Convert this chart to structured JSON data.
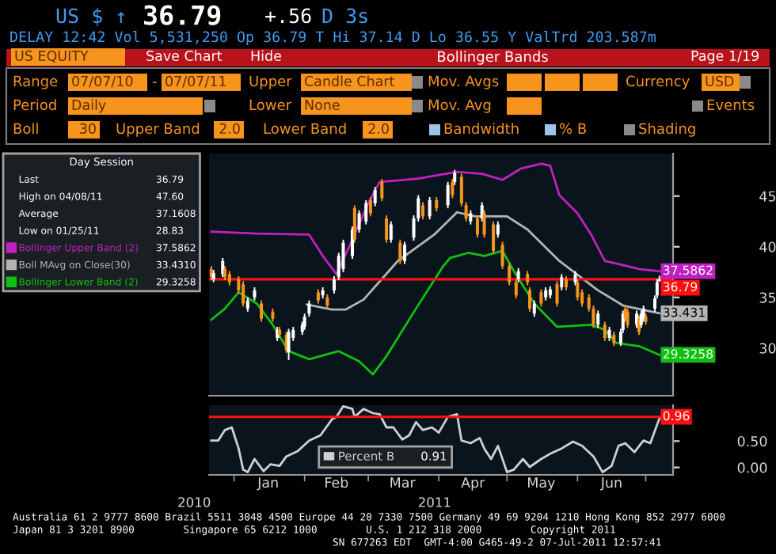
{
  "chart_data": [
    {
      "type": "candlestick",
      "title": "Bollinger Bands",
      "legend_title": "Day Session",
      "legend": "top left",
      "tick_labels": "y",
      "x": [
        "2010-12-22",
        "2010-12-23",
        "2010-12-27",
        "2010-12-28",
        "2010-12-30",
        "2011-01-03",
        "2011-01-05",
        "2011-01-07",
        "2011-01-10",
        "2011-01-13",
        "2011-01-18",
        "2011-01-20",
        "2011-01-21",
        "2011-01-24",
        "2011-01-25",
        "2011-01-27",
        "2011-01-31",
        "2011-02-01",
        "2011-02-03",
        "2011-02-07",
        "2011-02-09",
        "2011-02-11",
        "2011-02-14",
        "2011-02-16",
        "2011-02-18",
        "2011-02-22",
        "2011-02-23",
        "2011-02-25",
        "2011-02-28",
        "2011-03-02",
        "2011-03-04",
        "2011-03-07",
        "2011-03-09",
        "2011-03-11",
        "2011-03-15",
        "2011-03-17",
        "2011-03-21",
        "2011-03-23",
        "2011-03-25",
        "2011-03-28",
        "2011-03-31",
        "2011-04-05",
        "2011-04-07",
        "2011-04-08",
        "2011-04-11",
        "2011-04-13",
        "2011-04-15",
        "2011-04-18",
        "2011-04-20",
        "2011-04-21",
        "2011-04-25",
        "2011-04-27",
        "2011-04-29",
        "2011-05-02",
        "2011-05-05",
        "2011-05-06",
        "2011-05-10",
        "2011-05-11",
        "2011-05-13",
        "2011-05-16",
        "2011-05-18",
        "2011-05-20",
        "2011-05-23",
        "2011-05-25",
        "2011-05-27",
        "2011-05-31",
        "2011-06-01",
        "2011-06-03",
        "2011-06-06",
        "2011-06-08",
        "2011-06-10",
        "2011-06-13",
        "2011-06-15",
        "2011-06-17",
        "2011-06-20",
        "2011-06-21",
        "2011-06-22",
        "2011-06-23",
        "2011-06-27",
        "2011-06-28",
        "2011-06-29",
        "2011-06-30",
        "2011-07-01",
        "2011-07-05",
        "2011-07-06",
        "2011-07-07"
      ],
      "ohlc": [
        [
          37.8,
          38.1,
          36.7,
          37.0
        ],
        [
          36.8,
          37.7,
          36.5,
          37.4
        ],
        [
          37.3,
          38.9,
          37.0,
          38.6
        ],
        [
          37.8,
          38.1,
          36.7,
          37.0
        ],
        [
          37.3,
          37.6,
          36.2,
          36.5
        ],
        [
          36.8,
          37.1,
          35.4,
          35.7
        ],
        [
          36.3,
          36.6,
          34.1,
          34.4
        ],
        [
          33.9,
          35.0,
          33.6,
          34.7
        ],
        [
          35.0,
          36.0,
          34.7,
          35.7
        ],
        [
          34.4,
          34.7,
          32.6,
          32.9
        ],
        [
          33.6,
          33.9,
          32.6,
          32.9
        ],
        [
          31.0,
          32.1,
          30.7,
          31.8
        ],
        [
          31.8,
          32.1,
          31.0,
          31.3
        ],
        [
          31.3,
          31.6,
          29.5,
          29.8
        ],
        [
          29.6,
          31.9,
          28.83,
          31.6
        ],
        [
          31.0,
          32.1,
          30.7,
          31.8
        ],
        [
          31.6,
          32.6,
          31.3,
          32.3
        ],
        [
          32.1,
          33.4,
          31.8,
          33.1
        ],
        [
          33.4,
          34.7,
          33.1,
          34.4
        ],
        [
          35.5,
          35.8,
          34.4,
          34.7
        ],
        [
          35.2,
          36.0,
          34.9,
          35.7
        ],
        [
          35.0,
          35.3,
          33.9,
          34.2
        ],
        [
          35.7,
          37.1,
          35.4,
          36.8
        ],
        [
          37.0,
          39.4,
          36.7,
          39.1
        ],
        [
          37.8,
          40.7,
          37.5,
          40.4
        ],
        [
          39.1,
          42.0,
          38.8,
          41.7
        ],
        [
          43.8,
          44.1,
          40.4,
          40.7
        ],
        [
          41.7,
          43.6,
          41.4,
          43.3
        ],
        [
          42.5,
          44.6,
          42.2,
          44.3
        ],
        [
          44.6,
          44.9,
          43.0,
          43.3
        ],
        [
          44.3,
          45.9,
          44.0,
          45.6
        ],
        [
          46.4,
          46.7,
          44.5,
          44.8
        ],
        [
          42.8,
          43.1,
          40.4,
          40.7
        ],
        [
          40.7,
          42.5,
          40.4,
          42.2
        ],
        [
          40.4,
          40.7,
          38.3,
          38.6
        ],
        [
          38.6,
          40.5,
          38.3,
          40.2
        ],
        [
          40.9,
          43.1,
          40.6,
          42.8
        ],
        [
          42.8,
          45.1,
          42.5,
          44.8
        ],
        [
          44.1,
          44.4,
          42.7,
          43.0
        ],
        [
          43.0,
          44.9,
          42.7,
          44.6
        ],
        [
          44.6,
          44.9,
          43.5,
          43.8
        ],
        [
          44.1,
          46.4,
          43.8,
          46.1
        ],
        [
          46.4,
          46.7,
          44.8,
          45.1
        ],
        [
          46.4,
          47.6,
          46.1,
          47.3
        ],
        [
          46.9,
          47.2,
          44.0,
          44.3
        ],
        [
          44.1,
          44.4,
          42.5,
          42.8
        ],
        [
          42.5,
          43.6,
          42.2,
          43.3
        ],
        [
          42.8,
          43.1,
          40.9,
          41.2
        ],
        [
          42.8,
          44.4,
          42.5,
          44.1
        ],
        [
          43.3,
          43.6,
          40.9,
          41.2
        ],
        [
          42.2,
          42.5,
          39.3,
          39.6
        ],
        [
          41.2,
          42.5,
          40.9,
          42.2
        ],
        [
          40.2,
          40.5,
          37.8,
          38.1
        ],
        [
          38.1,
          38.4,
          36.2,
          36.5
        ],
        [
          36.5,
          36.8,
          34.9,
          35.2
        ],
        [
          36.8,
          37.9,
          36.5,
          37.6
        ],
        [
          37.3,
          37.6,
          36.2,
          36.5
        ],
        [
          35.7,
          36.0,
          33.6,
          33.9
        ],
        [
          33.4,
          34.7,
          33.1,
          34.4
        ],
        [
          35.5,
          35.8,
          34.1,
          34.4
        ],
        [
          35.0,
          36.0,
          34.7,
          35.7
        ],
        [
          35.2,
          36.1,
          34.9,
          35.8
        ],
        [
          36.3,
          36.6,
          34.1,
          34.4
        ],
        [
          36.0,
          37.3,
          35.7,
          37.0
        ],
        [
          36.8,
          37.1,
          35.7,
          36.0
        ],
        [
          36.5,
          37.6,
          36.2,
          37.3
        ],
        [
          36.5,
          36.8,
          34.7,
          35.0
        ],
        [
          35.5,
          35.8,
          34.1,
          34.4
        ],
        [
          35.0,
          35.3,
          33.6,
          33.9
        ],
        [
          33.9,
          34.2,
          32.0,
          32.3
        ],
        [
          32.3,
          33.7,
          32.0,
          33.4
        ],
        [
          32.3,
          32.6,
          30.7,
          31.0
        ],
        [
          31.0,
          32.1,
          30.7,
          31.8
        ],
        [
          31.3,
          31.6,
          30.2,
          30.5
        ],
        [
          30.5,
          31.9,
          30.2,
          31.6
        ],
        [
          31.8,
          33.7,
          31.5,
          33.4
        ],
        [
          33.9,
          34.2,
          32.6,
          32.9
        ],
        [
          33.6,
          33.9,
          32.0,
          32.3
        ],
        [
          32.3,
          33.7,
          32.0,
          33.4
        ],
        [
          32.9,
          33.2,
          31.3,
          31.6
        ],
        [
          32.3,
          33.7,
          32.0,
          33.4
        ],
        [
          32.9,
          34.2,
          32.6,
          33.9
        ],
        [
          33.1,
          33.4,
          32.3,
          32.6
        ],
        [
          33.9,
          35.2,
          33.6,
          34.9
        ],
        [
          35.2,
          36.8,
          34.9,
          36.5
        ],
        [
          36.6,
          37.14,
          36.55,
          36.79
        ]
      ],
      "colors": [
        "#f7941d",
        "#ffffff",
        "#ffffff",
        "#f7941d",
        "#f7941d",
        "#f7941d",
        "#f7941d",
        "#ffffff",
        "#ffffff",
        "#f7941d",
        "#f7941d",
        "#ffffff",
        "#f7941d",
        "#f7941d",
        "#ffffff",
        "#ffffff",
        "#ffffff",
        "#ffffff",
        "#ffffff",
        "#f7941d",
        "#ffffff",
        "#f7941d",
        "#ffffff",
        "#ffffff",
        "#ffffff",
        "#ffffff",
        "#f7941d",
        "#ffffff",
        "#ffffff",
        "#f7941d",
        "#ffffff",
        "#f7941d",
        "#f7941d",
        "#ffffff",
        "#f7941d",
        "#ffffff",
        "#ffffff",
        "#ffffff",
        "#f7941d",
        "#ffffff",
        "#f7941d",
        "#ffffff",
        "#f7941d",
        "#ffffff",
        "#f7941d",
        "#f7941d",
        "#ffffff",
        "#f7941d",
        "#ffffff",
        "#f7941d",
        "#f7941d",
        "#ffffff",
        "#f7941d",
        "#f7941d",
        "#f7941d",
        "#ffffff",
        "#f7941d",
        "#f7941d",
        "#ffffff",
        "#f7941d",
        "#ffffff",
        "#ffffff",
        "#f7941d",
        "#ffffff",
        "#f7941d",
        "#ffffff",
        "#f7941d",
        "#f7941d",
        "#f7941d",
        "#f7941d",
        "#ffffff",
        "#f7941d",
        "#ffffff",
        "#f7941d",
        "#ffffff",
        "#ffffff",
        "#f7941d",
        "#f7941d",
        "#ffffff",
        "#f7941d",
        "#ffffff",
        "#ffffff",
        "#f7941d",
        "#ffffff",
        "#ffffff",
        "#ffffff"
      ],
      "series": [
        {
          "type": "line",
          "name": "Bollinger Upper Band (2)",
          "color": "#c020c0",
          "x": [
            "2010-12-22",
            "2011-01-11",
            "2011-02-03",
            "2011-02-09",
            "2011-02-15",
            "2011-02-22",
            "2011-03-01",
            "2011-03-06",
            "2011-03-22",
            "2011-04-09",
            "2011-04-20",
            "2011-04-29",
            "2011-05-07",
            "2011-05-16",
            "2011-05-20",
            "2011-05-24",
            "2011-06-01",
            "2011-06-07",
            "2011-06-13",
            "2011-06-19",
            "2011-06-28",
            "2011-07-07"
          ],
          "values": [
            41.5,
            41.3,
            41.2,
            39.1,
            37.3,
            40.7,
            44.3,
            46.4,
            46.7,
            47.4,
            47.2,
            46.6,
            47.7,
            48.2,
            48.0,
            45.1,
            43.3,
            41.2,
            38.6,
            38.3,
            37.8,
            37.5862
          ],
          "value_labels": [
            null,
            null,
            null,
            null,
            null,
            null,
            null,
            null,
            null,
            null,
            null,
            null,
            null,
            null,
            null,
            null,
            null,
            null,
            null,
            null,
            null,
            "37.5862"
          ]
        },
        {
          "type": "line",
          "name": "Boll MAvg on Close(30)",
          "color": "#b4b4b4",
          "x": [
            "2011-02-02",
            "2011-02-13",
            "2011-02-19",
            "2011-02-27",
            "2011-03-14",
            "2011-03-30",
            "2011-04-09",
            "2011-04-17",
            "2011-05-01",
            "2011-05-10",
            "2011-05-24",
            "2011-06-10",
            "2011-06-21",
            "2011-07-07"
          ],
          "values": [
            34.3,
            33.8,
            33.8,
            34.8,
            38.6,
            41.2,
            43.4,
            43.0,
            43.0,
            41.7,
            38.6,
            35.7,
            34.2,
            33.431
          ],
          "value_labels": [
            null,
            null,
            null,
            null,
            null,
            null,
            null,
            null,
            null,
            null,
            null,
            null,
            null,
            "33.431"
          ]
        },
        {
          "type": "line",
          "name": "Bollinger Lower Band (2)",
          "color": "#10c010",
          "x": [
            "2010-12-22",
            "2010-12-28",
            "2011-01-03",
            "2011-01-11",
            "2011-01-18",
            "2011-01-25",
            "2011-02-03",
            "2011-02-16",
            "2011-02-25",
            "2011-03-03",
            "2011-03-09",
            "2011-03-22",
            "2011-04-03",
            "2011-04-06",
            "2011-04-14",
            "2011-04-21",
            "2011-04-29",
            "2011-05-04",
            "2011-05-13",
            "2011-05-23",
            "2011-06-07",
            "2011-06-13",
            "2011-06-18",
            "2011-06-28",
            "2011-07-07"
          ],
          "values": [
            32.8,
            33.9,
            35.5,
            34.4,
            32.3,
            29.7,
            28.9,
            29.7,
            28.7,
            27.4,
            29.2,
            33.9,
            38.1,
            38.9,
            39.4,
            39.1,
            39.6,
            37.6,
            34.4,
            32.1,
            32.3,
            31.8,
            30.5,
            30.2,
            29.3258
          ],
          "value_labels": [
            null,
            null,
            null,
            null,
            null,
            null,
            null,
            null,
            null,
            null,
            null,
            null,
            null,
            null,
            null,
            null,
            null,
            null,
            null,
            null,
            null,
            null,
            null,
            null,
            "29.3258"
          ]
        }
      ],
      "ylim": [
        25.3,
        49.2
      ],
      "yticks": [
        30,
        35,
        40,
        45
      ],
      "xlim": [
        "2010-12-21",
        "2011-07-13"
      ],
      "ref_lines": [
        {
          "axis": "y",
          "value": 36.79,
          "label": "36.79",
          "color": "#ff1010"
        }
      ],
      "annotations": [
        "US $ ↑",
        "36.79",
        "+.56",
        "D 3s",
        "DELAY 12:42 Vol 5,531,250 Op 36.79 T Hi 37.14 D Lo 36.55 Y ValTrd 203.587m",
        "US EQUITY",
        "Save Chart",
        "Hide",
        "Page 1/19",
        "Range",
        "07/07/10",
        "-",
        "07/07/11",
        "Upper",
        "Candle Chart",
        "Mov. Avgs",
        "Currency",
        "USD",
        "Period",
        "Daily",
        "Lower",
        "None",
        "Mov. Avg",
        "Events",
        "Boll",
        "30",
        "Upper Band",
        "2.0",
        "Lower Band",
        "2.0",
        "Bandwidth",
        "% B",
        "Shading",
        "Last",
        "High on 04/08/11",
        "Average",
        "Low on 01/25/11",
        "36.79",
        "47.60",
        "37.1608",
        "28.83",
        "37.5862",
        "33.4310",
        "29.3258"
      ]
    },
    {
      "type": "line",
      "legend": "bottom",
      "series": [
        {
          "name": "Percent B",
          "color": "#d0d0d0",
          "x": [
            "2010-12-22",
            "2010-12-25",
            "2010-12-28",
            "2010-12-31",
            "2011-01-03",
            "2011-01-05",
            "2011-01-07",
            "2011-01-10",
            "2011-01-14",
            "2011-01-17",
            "2011-01-21",
            "2011-01-24",
            "2011-01-29",
            "2011-02-03",
            "2011-02-08",
            "2011-02-13",
            "2011-02-15",
            "2011-02-18",
            "2011-02-22",
            "2011-02-23",
            "2011-02-27",
            "2011-03-03",
            "2011-03-06",
            "2011-03-09",
            "2011-03-12",
            "2011-03-16",
            "2011-03-19",
            "2011-03-22",
            "2011-03-25",
            "2011-03-29",
            "2011-04-01",
            "2011-04-05",
            "2011-04-09",
            "2011-04-11",
            "2011-04-15",
            "2011-04-19",
            "2011-04-21",
            "2011-04-24",
            "2011-04-27",
            "2011-05-01",
            "2011-05-04",
            "2011-05-08",
            "2011-05-11",
            "2011-05-16",
            "2011-05-20",
            "2011-05-25",
            "2011-05-30",
            "2011-06-03",
            "2011-06-08",
            "2011-06-12",
            "2011-06-16",
            "2011-06-19",
            "2011-06-22",
            "2011-06-26",
            "2011-06-30",
            "2011-07-03",
            "2011-07-07"
          ],
          "values": [
            0.51,
            0.51,
            0.71,
            0.76,
            0.36,
            -0.04,
            -0.09,
            0.16,
            -0.07,
            0.06,
            0.03,
            0.21,
            0.31,
            0.51,
            0.61,
            0.91,
            0.96,
            1.16,
            1.11,
            0.96,
            1.11,
            1.03,
            1.01,
            0.76,
            0.76,
            0.53,
            0.61,
            0.86,
            0.71,
            0.76,
            0.66,
            0.96,
            1.01,
            0.51,
            0.46,
            0.56,
            0.36,
            0.16,
            0.41,
            -0.09,
            -0.04,
            0.16,
            0.01,
            0.16,
            0.26,
            0.36,
            0.49,
            0.41,
            0.21,
            -0.09,
            0.03,
            0.41,
            0.46,
            0.29,
            0.51,
            0.46,
            0.93
          ]
        }
      ],
      "ylim": [
        -0.14,
        1.18
      ],
      "yticks": [
        {
          "value": 0,
          "label": "0.00"
        },
        {
          "value": 0.5,
          "label": "0.50"
        }
      ],
      "xlim": [
        "2010-12-21",
        "2011-07-13"
      ],
      "xticks": [
        {
          "value": "2011-01-01",
          "label": null
        },
        {
          "value": "2011-01-16",
          "label": "Jan"
        },
        {
          "value": "2011-02-01",
          "label": null
        },
        {
          "value": "2011-02-15",
          "label": "Feb"
        },
        {
          "value": "2011-03-01",
          "label": null
        },
        {
          "value": "2011-03-16",
          "label": "Mar"
        },
        {
          "value": "2011-04-01",
          "label": null
        },
        {
          "value": "2011-04-16",
          "label": "Apr"
        },
        {
          "value": "2011-05-01",
          "label": null
        },
        {
          "value": "2011-05-16",
          "label": "May"
        },
        {
          "value": "2011-06-01",
          "label": null
        },
        {
          "value": "2011-06-16",
          "label": "Jun"
        },
        {
          "value": "2011-07-01",
          "label": null
        }
      ],
      "ref_lines": [
        {
          "axis": "y",
          "value": 0.96,
          "label": "0.96",
          "color": "#ff1010"
        }
      ],
      "annotations": [
        "0.91",
        "2010",
        "2011",
        "Australia 61 2 9777 8600 Brazil 5511 3048 4500 Europe 44 20 7330 7500 Germany 49 69 9204 1210 Hong Kong 852 2977 6000",
        "Japan 81 3 3201 8900        Singapore 65 6212 1000        U.S. 1 212 318 2000        Copyright 2011",
        "SN 677263 EDT  GMT-4:00 G465-49-2 07-Jul-2011 12:57:41"
      ]
    }
  ]
}
